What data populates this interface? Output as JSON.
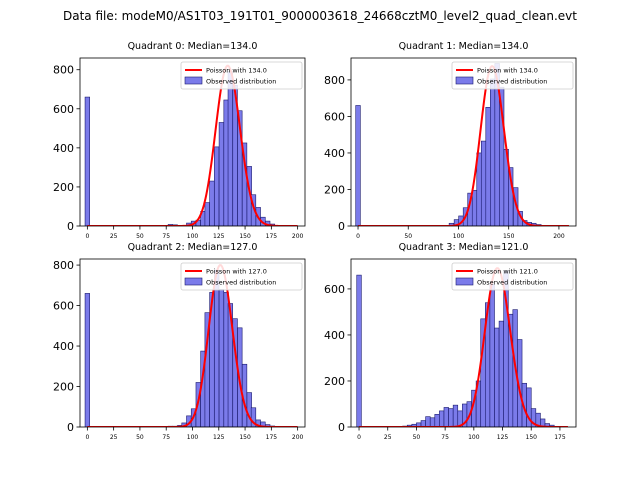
{
  "figure": {
    "suptitle": "Data file: modeM0/AS1T03_191T01_9000003618_24668cztM0_level2_quad_clean.evt"
  },
  "colors": {
    "bar_fill": "#7b7bea",
    "bar_edge": "#1a1a6e",
    "poisson_line": "#ff0000"
  },
  "legend_labels": {
    "observed": "Observed distribution"
  },
  "chart_data": [
    {
      "type": "bar",
      "title": "Quadrant 0: Median=134.0",
      "legend": [
        "Poisson with 134.0",
        "Observed distribution"
      ],
      "legend_position": "top-right",
      "median": 134.0,
      "poisson_peak": 820,
      "xlim": [
        -7,
        207
      ],
      "ylim": [
        0,
        860
      ],
      "xticks": [
        0,
        25,
        50,
        75,
        100,
        125,
        150,
        175,
        200
      ],
      "yticks": [
        0,
        200,
        400,
        600,
        800
      ],
      "bin_width": 4.4,
      "bins": [
        {
          "x": 0,
          "y": 660
        },
        {
          "x": 79,
          "y": 8
        },
        {
          "x": 83.5,
          "y": 6
        },
        {
          "x": 88,
          "y": 2
        },
        {
          "x": 92,
          "y": 3
        },
        {
          "x": 96.5,
          "y": 15
        },
        {
          "x": 101,
          "y": 25
        },
        {
          "x": 105.5,
          "y": 30
        },
        {
          "x": 110,
          "y": 75
        },
        {
          "x": 114,
          "y": 120
        },
        {
          "x": 118.5,
          "y": 230
        },
        {
          "x": 123,
          "y": 405
        },
        {
          "x": 127.5,
          "y": 530
        },
        {
          "x": 132,
          "y": 645
        },
        {
          "x": 136,
          "y": 790
        },
        {
          "x": 140.5,
          "y": 720
        },
        {
          "x": 145,
          "y": 590
        },
        {
          "x": 149.5,
          "y": 425
        },
        {
          "x": 154,
          "y": 305
        },
        {
          "x": 158,
          "y": 160
        },
        {
          "x": 162.5,
          "y": 95
        },
        {
          "x": 167,
          "y": 45
        },
        {
          "x": 171.5,
          "y": 25
        },
        {
          "x": 176,
          "y": 10
        }
      ]
    },
    {
      "type": "bar",
      "title": "Quadrant 1: Median=134.0",
      "legend": [
        "Poisson with 134.0",
        "Observed distribution"
      ],
      "legend_position": "top-right",
      "median": 134.0,
      "poisson_peak": 875,
      "xlim": [
        -7,
        217
      ],
      "ylim": [
        0,
        920
      ],
      "xticks": [
        0,
        50,
        100,
        150,
        200
      ],
      "yticks": [
        0,
        200,
        400,
        600,
        800
      ],
      "bin_width": 4.6,
      "bins": [
        {
          "x": 0,
          "y": 660
        },
        {
          "x": 93,
          "y": 15
        },
        {
          "x": 98,
          "y": 35
        },
        {
          "x": 102.5,
          "y": 55
        },
        {
          "x": 107,
          "y": 100
        },
        {
          "x": 111.5,
          "y": 180
        },
        {
          "x": 116,
          "y": 195
        },
        {
          "x": 120.5,
          "y": 400
        },
        {
          "x": 125,
          "y": 465
        },
        {
          "x": 129.5,
          "y": 650
        },
        {
          "x": 134,
          "y": 805
        },
        {
          "x": 138.5,
          "y": 890
        },
        {
          "x": 143,
          "y": 760
        },
        {
          "x": 147.5,
          "y": 420
        },
        {
          "x": 152,
          "y": 320
        },
        {
          "x": 157,
          "y": 210
        },
        {
          "x": 161.5,
          "y": 80
        },
        {
          "x": 166,
          "y": 30
        },
        {
          "x": 170.5,
          "y": 20
        },
        {
          "x": 175,
          "y": 15
        },
        {
          "x": 180,
          "y": 8
        }
      ]
    },
    {
      "type": "bar",
      "title": "Quadrant 2: Median=127.0",
      "legend": [
        "Poisson with 127.0",
        "Observed distribution"
      ],
      "legend_position": "top-right",
      "median": 127.0,
      "poisson_peak": 800,
      "xlim": [
        -7,
        207
      ],
      "ylim": [
        0,
        830
      ],
      "xticks": [
        0,
        25,
        50,
        75,
        100,
        125,
        150,
        175,
        200
      ],
      "yticks": [
        0,
        200,
        400,
        600,
        800
      ],
      "bin_width": 4.4,
      "bins": [
        {
          "x": 0,
          "y": 660
        },
        {
          "x": 79,
          "y": 4
        },
        {
          "x": 83.5,
          "y": 4
        },
        {
          "x": 88,
          "y": 8
        },
        {
          "x": 92,
          "y": 20
        },
        {
          "x": 96.5,
          "y": 55
        },
        {
          "x": 101,
          "y": 90
        },
        {
          "x": 105.5,
          "y": 220
        },
        {
          "x": 110,
          "y": 375
        },
        {
          "x": 114,
          "y": 565
        },
        {
          "x": 118.5,
          "y": 665
        },
        {
          "x": 123,
          "y": 775
        },
        {
          "x": 127.5,
          "y": 680
        },
        {
          "x": 132,
          "y": 665
        },
        {
          "x": 136,
          "y": 610
        },
        {
          "x": 140.5,
          "y": 535
        },
        {
          "x": 145,
          "y": 490
        },
        {
          "x": 149.5,
          "y": 310
        },
        {
          "x": 154,
          "y": 170
        },
        {
          "x": 158,
          "y": 95
        },
        {
          "x": 162.5,
          "y": 35
        },
        {
          "x": 167,
          "y": 25
        },
        {
          "x": 171.5,
          "y": 12
        },
        {
          "x": 176,
          "y": 5
        }
      ]
    },
    {
      "type": "bar",
      "title": "Quadrant 3: Median=121.0",
      "legend": [
        "Poisson with 121.0",
        "Observed distribution"
      ],
      "legend_position": "top-right",
      "median": 121.0,
      "poisson_peak": 690,
      "xlim": [
        -7,
        189
      ],
      "ylim": [
        0,
        730
      ],
      "xticks": [
        0,
        25,
        50,
        75,
        100,
        125,
        150,
        175
      ],
      "yticks": [
        0,
        200,
        400,
        600
      ],
      "bin_width": 4.0,
      "bins": [
        {
          "x": 0,
          "y": 660
        },
        {
          "x": 40,
          "y": 4
        },
        {
          "x": 44,
          "y": 8
        },
        {
          "x": 48,
          "y": 12
        },
        {
          "x": 52,
          "y": 18
        },
        {
          "x": 56,
          "y": 28
        },
        {
          "x": 60,
          "y": 45
        },
        {
          "x": 64,
          "y": 40
        },
        {
          "x": 68,
          "y": 55
        },
        {
          "x": 72,
          "y": 70
        },
        {
          "x": 76,
          "y": 85
        },
        {
          "x": 80,
          "y": 80
        },
        {
          "x": 84,
          "y": 95
        },
        {
          "x": 88,
          "y": 70
        },
        {
          "x": 92,
          "y": 100
        },
        {
          "x": 96,
          "y": 110
        },
        {
          "x": 100,
          "y": 160
        },
        {
          "x": 104,
          "y": 200
        },
        {
          "x": 108,
          "y": 470
        },
        {
          "x": 112,
          "y": 540
        },
        {
          "x": 116,
          "y": 620
        },
        {
          "x": 120,
          "y": 430
        },
        {
          "x": 124,
          "y": 460
        },
        {
          "x": 128,
          "y": 680
        },
        {
          "x": 132,
          "y": 490
        },
        {
          "x": 136,
          "y": 510
        },
        {
          "x": 140,
          "y": 380
        },
        {
          "x": 144,
          "y": 190
        },
        {
          "x": 148,
          "y": 170
        },
        {
          "x": 152,
          "y": 80
        },
        {
          "x": 156,
          "y": 60
        },
        {
          "x": 160,
          "y": 35
        },
        {
          "x": 164,
          "y": 15
        },
        {
          "x": 168,
          "y": 8
        }
      ]
    }
  ]
}
